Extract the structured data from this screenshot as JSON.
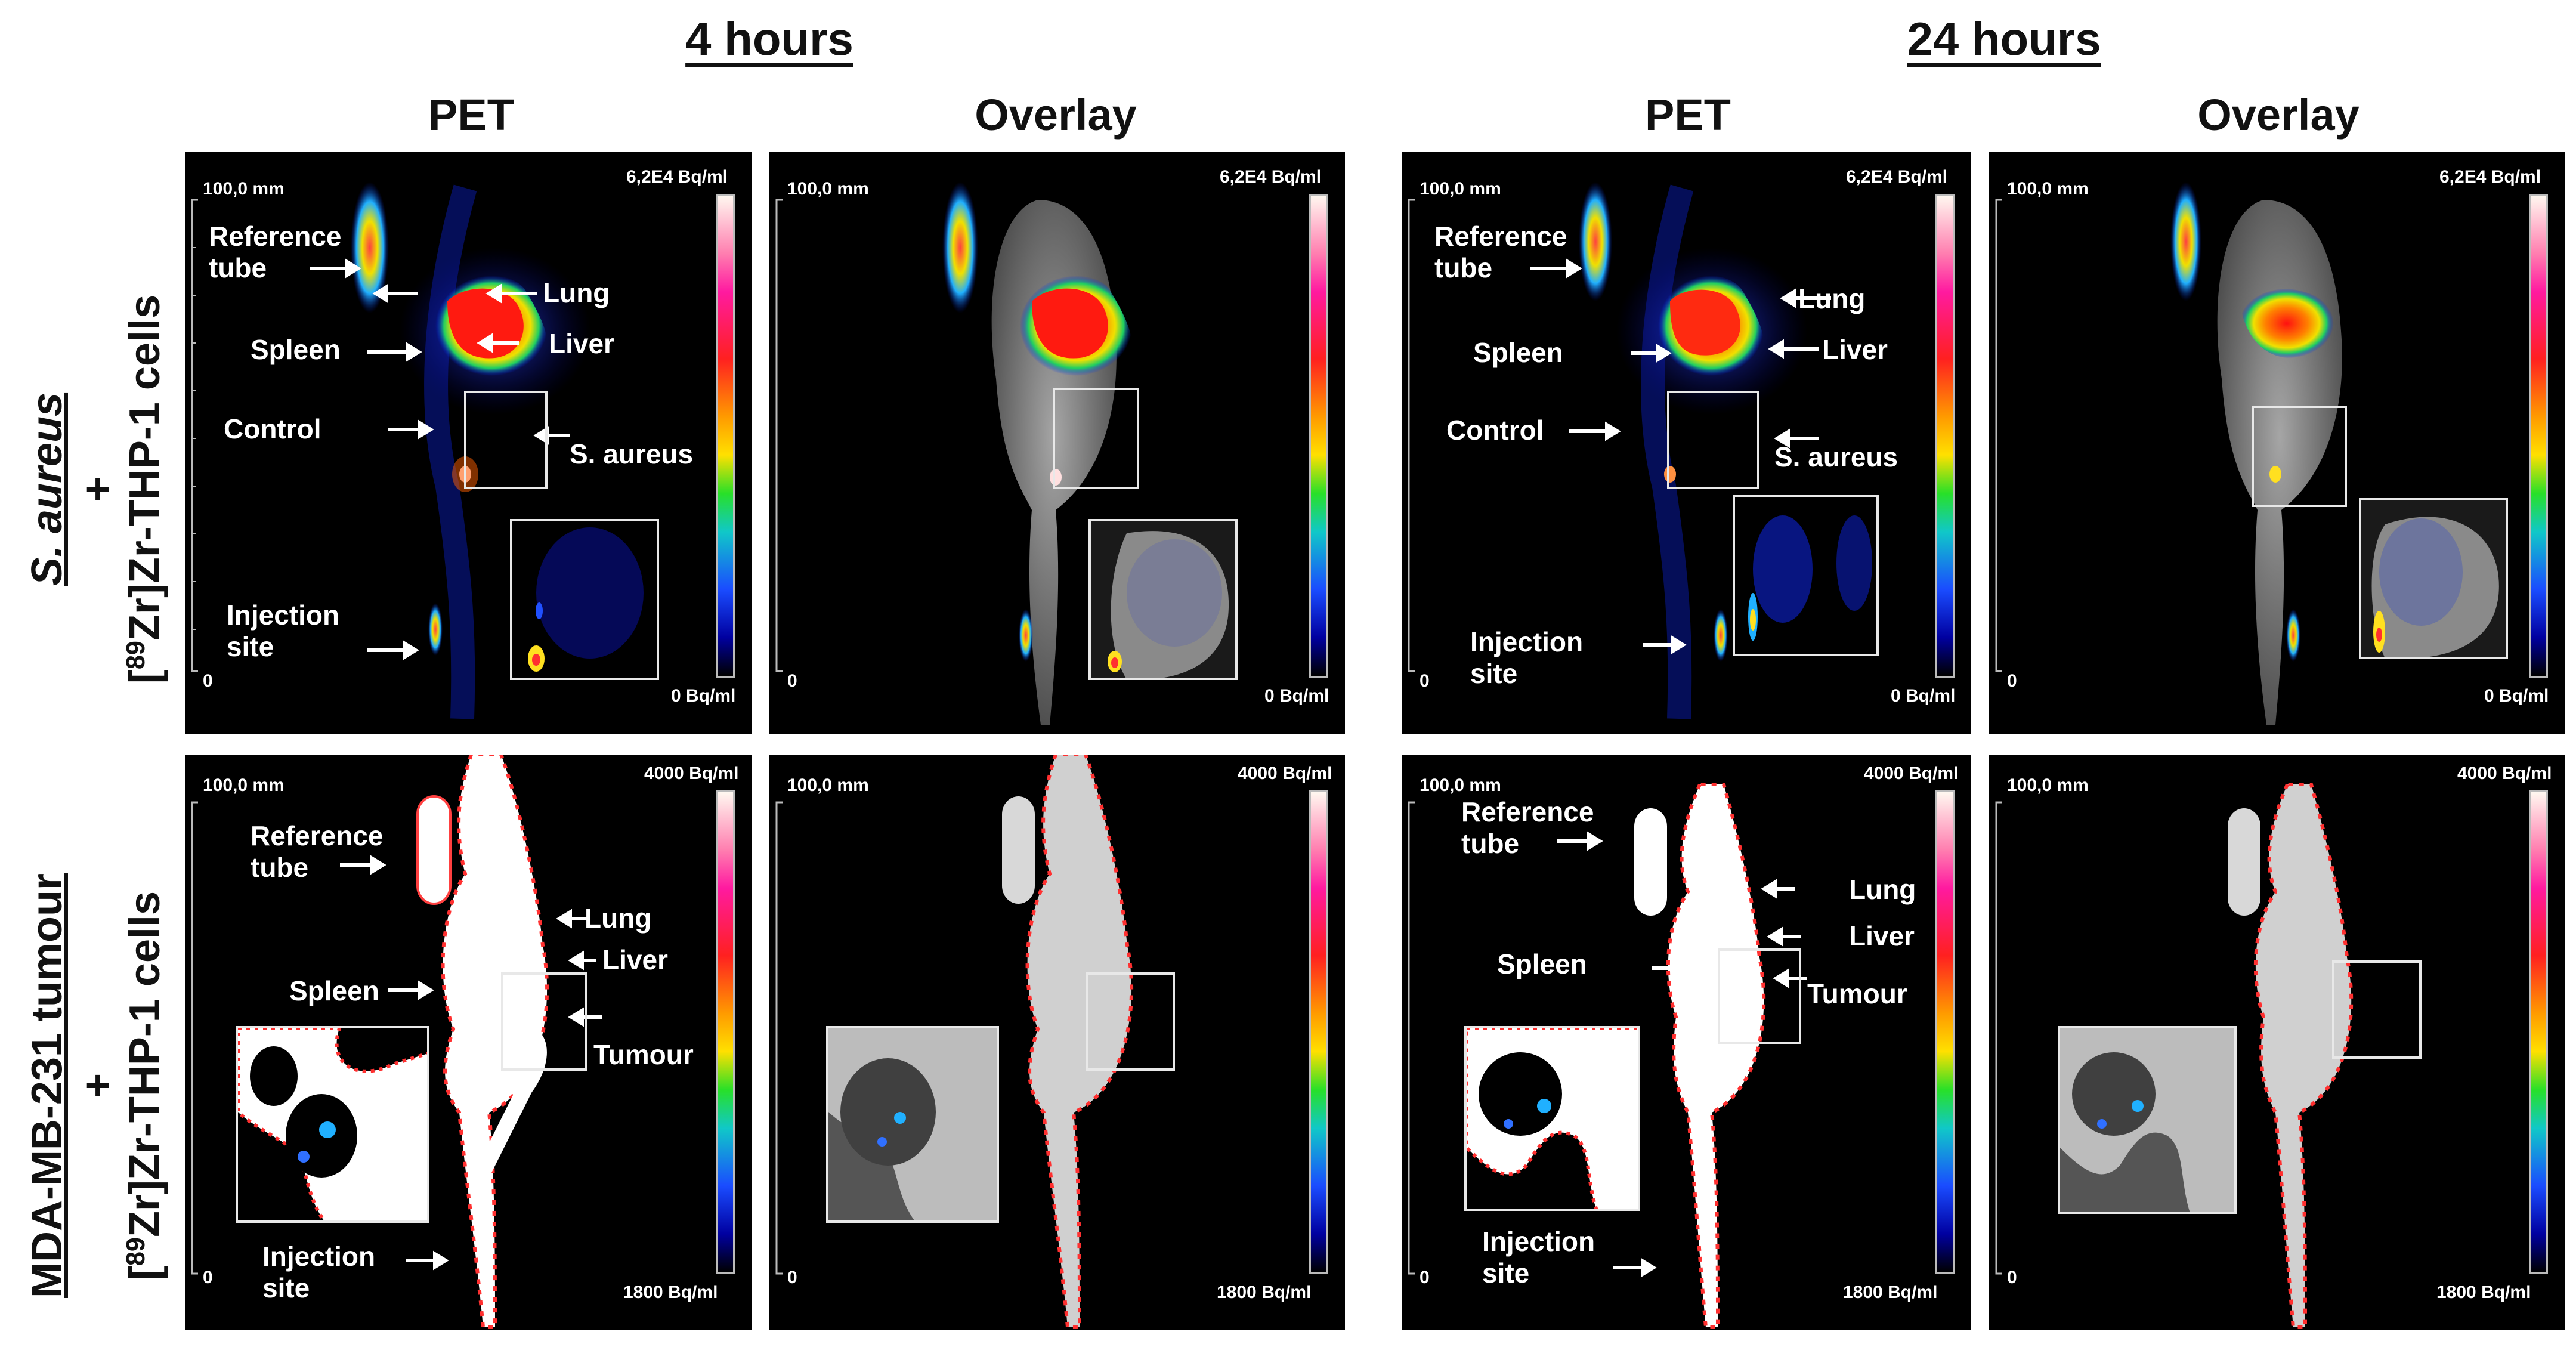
{
  "headers": {
    "time_4h": "4 hours",
    "time_24h": "24 hours",
    "pet": "PET",
    "overlay": "Overlay"
  },
  "rows": {
    "top": {
      "line1": "S. aureus",
      "plus": "+",
      "line2_pre": "[",
      "line2_sup": "89",
      "line2_post": "Zr]Zr-THP-1 cells"
    },
    "bottom": {
      "line1": "MDA-MB-231 tumour",
      "plus": "+",
      "line2_pre": "[",
      "line2_sup": "89",
      "line2_post": "Zr]Zr-THP-1 cells"
    }
  },
  "scale": {
    "mm_top": "100,0 mm",
    "mm_bottom": "0"
  },
  "colorbar": {
    "top": {
      "max": "6,2E4 Bq/ml",
      "min": "0 Bq/ml"
    },
    "bottom": {
      "max": "4000 Bq/ml",
      "min": "1800 Bq/ml"
    }
  },
  "labels": {
    "reference_tube": "Reference\ntube",
    "lung": "Lung",
    "liver": "Liver",
    "spleen": "Spleen",
    "control": "Control",
    "s_aureus": "S. aureus",
    "tumour": "Tumour",
    "injection_site": "Injection\nsite"
  },
  "colors": {
    "panel_bg": "#000000",
    "hot": "#ff2020",
    "cool": "#1a3cff",
    "overlay_gray": "#9a9a9a"
  }
}
